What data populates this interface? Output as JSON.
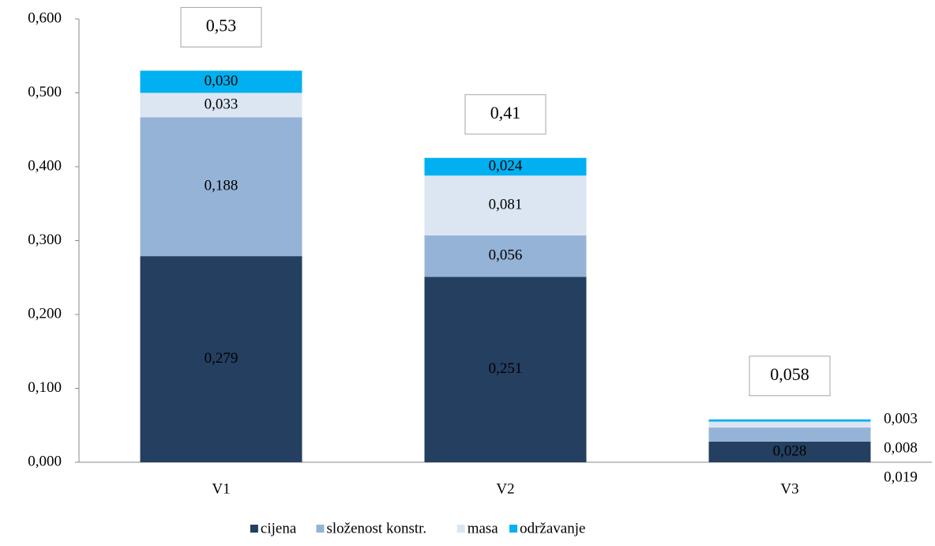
{
  "chart_data": {
    "type": "stacked_bar",
    "categories": [
      "V1",
      "V2",
      "V3"
    ],
    "series": [
      {
        "name": "cijena",
        "color": "#243f60",
        "values": [
          0.279,
          0.251,
          0.028
        ],
        "value_labels": [
          "0,279",
          "0,251",
          "0,028"
        ]
      },
      {
        "name": "složenost konstr.",
        "color": "#95b3d7",
        "values": [
          0.188,
          0.056,
          0.019
        ],
        "value_labels": [
          "0,188",
          "0,056",
          "0,019"
        ]
      },
      {
        "name": "masa",
        "color": "#dce6f2",
        "values": [
          0.033,
          0.081,
          0.008
        ],
        "value_labels": [
          "0,033",
          "0,081",
          "0,008"
        ]
      },
      {
        "name": "održavanje",
        "color": "#00b0f0",
        "values": [
          0.03,
          0.024,
          0.003
        ],
        "value_labels": [
          "0,030",
          "0,024",
          "0,003"
        ]
      }
    ],
    "totals": {
      "values": [
        0.53,
        0.41,
        0.058
      ],
      "labels": [
        "0,53",
        "0,41",
        "0,058"
      ]
    },
    "ylim": [
      0,
      0.6
    ],
    "yticks": [
      {
        "value": 0,
        "label": "0,000"
      },
      {
        "value": 0.1,
        "label": "0,100"
      },
      {
        "value": 0.2,
        "label": "0,200"
      },
      {
        "value": 0.3,
        "label": "0,300"
      },
      {
        "value": 0.4,
        "label": "0,400"
      },
      {
        "value": 0.5,
        "label": "0,500"
      },
      {
        "value": 0.6,
        "label": "0,600"
      }
    ],
    "legend": "bottom"
  }
}
